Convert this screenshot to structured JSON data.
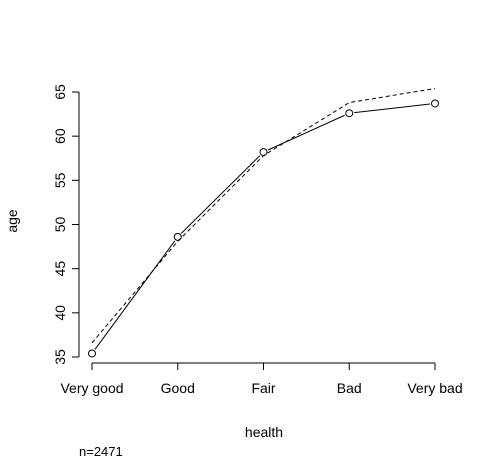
{
  "chart_data": {
    "type": "line",
    "xlabel": "health",
    "ylabel": "age",
    "categories": [
      "Very good",
      "Good",
      "Fair",
      "Bad",
      "Very bad"
    ],
    "ylim": [
      35,
      65
    ],
    "yticks": [
      35,
      40,
      45,
      50,
      55,
      60,
      65
    ],
    "grid": false,
    "series": [
      {
        "values": [
          35.4,
          48.6,
          58.2,
          62.6,
          63.7
        ],
        "line_style": "solid",
        "markers": "open-circle"
      },
      {
        "values": [
          36.6,
          48.1,
          57.8,
          63.8,
          65.4
        ],
        "line_style": "dashed",
        "markers": "none"
      }
    ],
    "annotation": "n=2471"
  }
}
